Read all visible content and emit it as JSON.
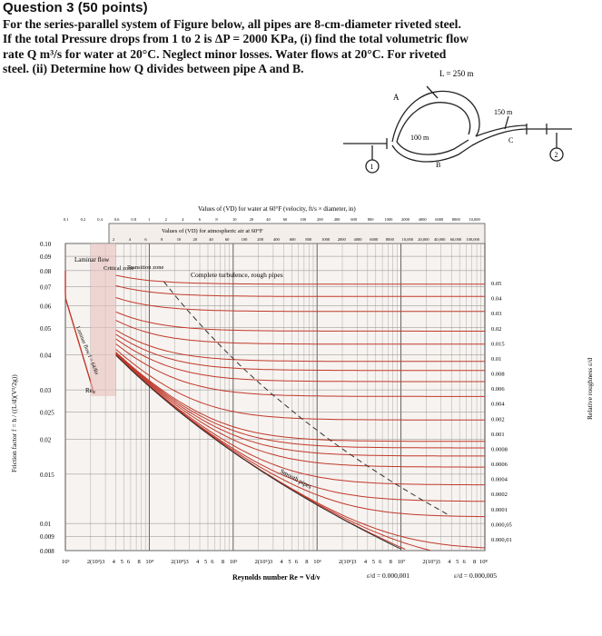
{
  "question": {
    "title": "Question 3 (50 points)",
    "lines": [
      "For the series-parallel system of Figure below, all pipes are 8-cm-diameter riveted steel.",
      "If the total Pressure drops from 1 to 2 is ΔP = 2000 KPa, (i) find the total volumetric flow",
      "rate  Q m³/s  for water at 20°C. Neglect minor losses. Water flows at 20°C. For riveted",
      "steel. (ii) Determine how Q divides between pipe A and B."
    ]
  },
  "pipe_figure": {
    "length_top": "L = 250 m",
    "label_A": "A",
    "label_B": "B",
    "label_C": "C",
    "length_B": "100 m",
    "length_C": "150 m",
    "node_1": "1",
    "node_2": "2"
  },
  "moody": {
    "top_title": "Values of (VD) for water at 60°F (velocity, ft/s × diameter, in)",
    "top_title2": "Values of (VD) for atmospheric air at 60°F",
    "top_ticks1": [
      "0.1",
      "0.2",
      "0.4",
      "0.6",
      "0.8",
      "1",
      "2",
      "4",
      "6",
      "8",
      "10",
      "20",
      "40",
      "60",
      "100",
      "200",
      "400",
      "600",
      "800",
      "1000",
      "2000",
      "4000",
      "6000",
      "8000",
      "10,000"
    ],
    "top_ticks2": [
      "2",
      "4",
      "6",
      "8",
      "10",
      "20",
      "40",
      "60",
      "100",
      "200",
      "400",
      "600",
      "800",
      "1000",
      "2000",
      "4000",
      "6000",
      "8000",
      "10,000",
      "20,000",
      "40,000",
      "60,000",
      "100,000"
    ],
    "y_ticks": [
      "0.10",
      "0.09",
      "0.08",
      "0.07",
      "0.06",
      "0.05",
      "0.04",
      "0.03",
      "0.025",
      "0.02",
      "0.015",
      "0.01",
      "0.009",
      "0.008"
    ],
    "y_label": "Friction factor f = h / ((L/d)(V²/2g))",
    "right_ticks": [
      "0.05",
      "0.04",
      "0.03",
      "0.02",
      "0.015",
      "0.01",
      "0.008",
      "0.006",
      "0.004",
      "0.002",
      "0.001",
      "0.0008",
      "0.0006",
      "0.0004",
      "0.0002",
      "0.0001",
      "0.000,05",
      "0.000,01"
    ],
    "right_label": "Relative roughness ε/d",
    "x_ticks": [
      "10³",
      "2(10³)",
      "3",
      "4",
      "5",
      "6",
      "8",
      "10⁴",
      "2(10⁴)",
      "3",
      "4",
      "5",
      "6",
      "8",
      "10⁵",
      "2(10⁵)",
      "3",
      "4",
      "5",
      "6",
      "8",
      "10⁶",
      "2(10⁶)",
      "3",
      "4",
      "5",
      "6",
      "8",
      "10⁷",
      "2(10⁷)",
      "3",
      "4",
      "5",
      "6",
      "8",
      "10⁸"
    ],
    "x_label": "Reynolds number Re = Vd/ν",
    "eps1": "ε/d = 0.000,001",
    "eps2": "ε/d = 0.000,005",
    "zone_laminar": "Laminar flow",
    "zone_critical": "Critical zone",
    "zone_transition": "Transition zone",
    "zone_turb": "Complete turbulence, rough pipes",
    "laminar_formula": "Laminar flow f = 64/Re",
    "re_cr": "Reₑᵣ",
    "smooth": "Smooth pipes"
  }
}
